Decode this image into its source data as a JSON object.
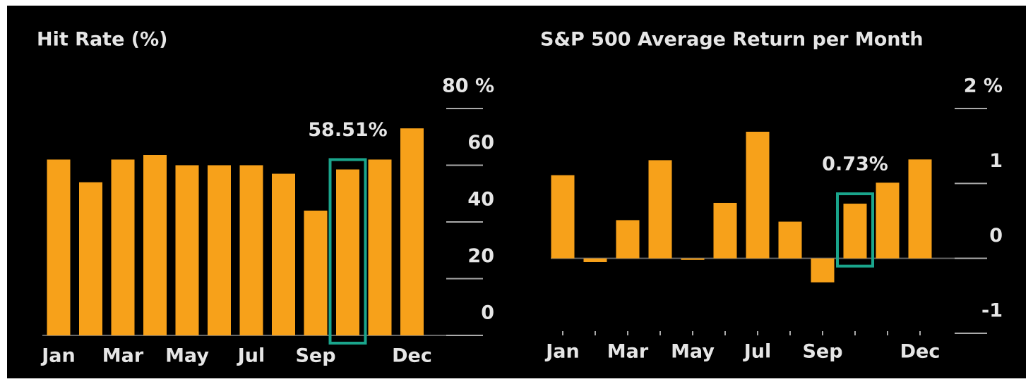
{
  "chart_data": [
    {
      "type": "bar",
      "title": "Hit Rate (%)",
      "categories": [
        "Jan",
        null,
        "Mar",
        null,
        "May",
        null,
        "Jul",
        null,
        "Sep",
        null,
        null,
        "Dec"
      ],
      "values": [
        62,
        54,
        62,
        63.6,
        60,
        60,
        60,
        57,
        44,
        58.51,
        62,
        73
      ],
      "value_labels": [
        null,
        null,
        null,
        null,
        null,
        null,
        null,
        null,
        null,
        "58.51%",
        null,
        null
      ],
      "color": "#f7a11a",
      "highlight_color": "#1aa58c",
      "ylim": [
        0,
        80
      ],
      "yticks": [
        0,
        20,
        40,
        60,
        {
          "value": 80,
          "label": "80 %"
        }
      ]
    },
    {
      "type": "bar",
      "title": "S&P 500 Average Return per Month",
      "categories": [
        "Jan",
        null,
        "Mar",
        null,
        "May",
        null,
        "Jul",
        null,
        "Sep",
        null,
        null,
        "Dec"
      ],
      "values": [
        1.11,
        -0.05,
        0.51,
        1.31,
        -0.02,
        0.74,
        1.69,
        0.49,
        -0.32,
        0.73,
        1.01,
        1.32
      ],
      "value_labels": [
        null,
        null,
        null,
        null,
        null,
        null,
        null,
        null,
        null,
        "0.73%",
        null,
        null
      ],
      "color": "#f7a11a",
      "highlight_color": "#1aa58c",
      "ylim": [
        -1,
        2
      ],
      "yticks": [
        -1,
        0,
        1,
        {
          "value": 2,
          "label": "2 %"
        }
      ]
    }
  ]
}
